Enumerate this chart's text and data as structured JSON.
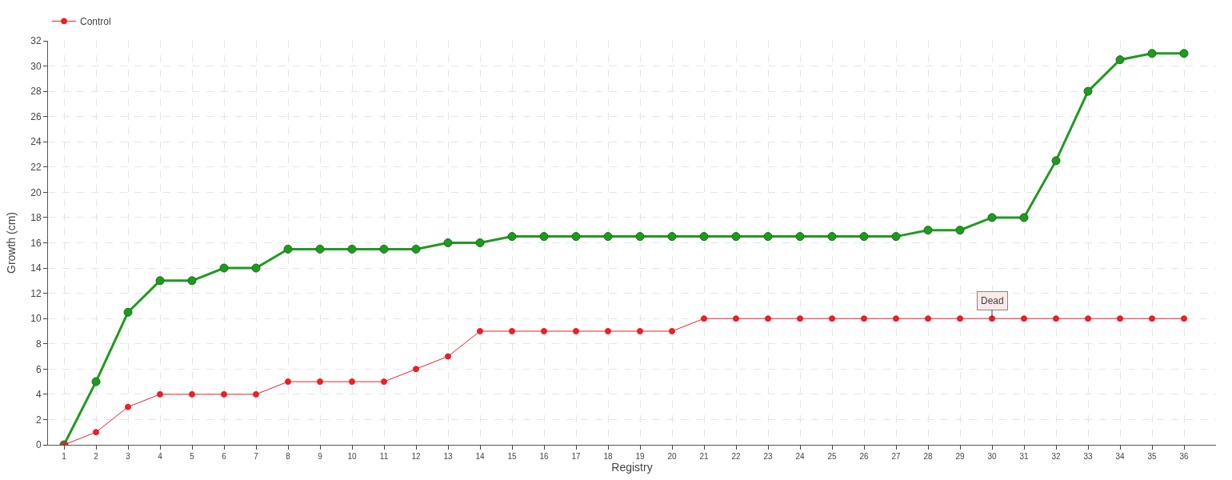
{
  "chart_data": {
    "type": "line",
    "xlabel": "Registry",
    "ylabel": "Growth (cm)",
    "x": [
      1,
      2,
      3,
      4,
      5,
      6,
      7,
      8,
      9,
      10,
      11,
      12,
      13,
      14,
      15,
      16,
      17,
      18,
      19,
      20,
      21,
      22,
      23,
      24,
      25,
      26,
      27,
      28,
      29,
      30,
      31,
      32,
      33,
      34,
      35,
      36
    ],
    "xlim": [
      0.5,
      37
    ],
    "xticks": [
      1,
      2,
      3,
      4,
      5,
      6,
      7,
      8,
      9,
      10,
      11,
      12,
      13,
      14,
      15,
      16,
      17,
      18,
      19,
      20,
      21,
      22,
      23,
      24,
      25,
      26,
      27,
      28,
      29,
      30,
      31,
      32,
      33,
      34,
      35,
      36
    ],
    "series": [
      {
        "color": "#1f9a1f",
        "values": [
          0,
          5,
          10.5,
          13,
          13,
          14,
          14,
          15.5,
          15.5,
          15.5,
          15.5,
          15.5,
          16,
          16,
          16.5,
          16.5,
          16.5,
          16.5,
          16.5,
          16.5,
          16.5,
          16.5,
          16.5,
          16.5,
          16.5,
          16.5,
          16.5,
          17,
          17,
          18,
          18,
          22.5,
          28,
          30.5,
          31,
          31
        ]
      },
      {
        "name": "Control",
        "color": "#e8202a",
        "values": [
          0,
          1,
          3,
          4,
          4,
          4,
          4,
          5,
          5,
          5,
          5,
          6,
          7,
          9,
          9,
          9,
          9,
          9,
          9,
          9,
          10,
          10,
          10,
          10,
          10,
          10,
          10,
          10,
          10,
          10,
          10,
          10,
          10,
          10,
          10,
          10
        ]
      }
    ],
    "ylim": [
      0,
      32
    ],
    "yticks": [
      0,
      2,
      4,
      6,
      8,
      10,
      12,
      14,
      16,
      18,
      20,
      22,
      24,
      26,
      28,
      30,
      32
    ],
    "annotations": [
      {
        "text": "Dead",
        "x": 30,
        "y": 10
      }
    ],
    "grid": true,
    "legend": "top left",
    "marker": "circle",
    "line_style": "solid"
  }
}
